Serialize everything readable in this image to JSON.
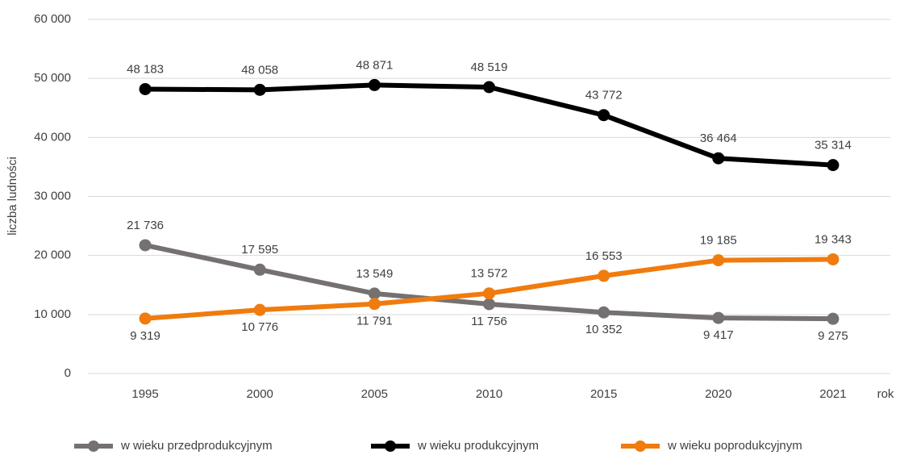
{
  "chart_data": {
    "type": "line",
    "y_label": "liczba ludności",
    "x_label": "rok",
    "categories": [
      "1995",
      "2000",
      "2005",
      "2010",
      "2015",
      "2020",
      "2021"
    ],
    "series": [
      {
        "name": "w wieku przedprodukcyjnym",
        "color": "#767171",
        "values": [
          21736,
          17595,
          13549,
          11756,
          10352,
          9417,
          9275
        ],
        "value_labels": [
          "21 736",
          "17 595",
          "13 549",
          "11 756",
          "10 352",
          "9 417",
          "9 275"
        ]
      },
      {
        "name": "w wieku produkcyjnym",
        "color": "#000000",
        "values": [
          48183,
          48058,
          48871,
          48519,
          43772,
          36464,
          35314
        ],
        "value_labels": [
          "48 183",
          "48 058",
          "48 871",
          "48 519",
          "43 772",
          "36 464",
          "35 314"
        ]
      },
      {
        "name": "w wieku poprodukcyjnym",
        "color": "#f07b0e",
        "values": [
          9319,
          10776,
          11791,
          13572,
          16553,
          19185,
          19343
        ],
        "value_labels": [
          "9 319",
          "10 776",
          "11 791",
          "13 572",
          "16 553",
          "19 185",
          "19 343"
        ]
      }
    ],
    "ylim": [
      0,
      60000
    ],
    "yticks": [
      0,
      {
        "value": 10000,
        "label": "10 000"
      },
      {
        "value": 20000,
        "label": "20 000"
      },
      {
        "value": 30000,
        "label": "30 000"
      },
      {
        "value": 40000,
        "label": "40 000"
      },
      {
        "value": 50000,
        "label": "50 000"
      },
      {
        "value": 60000,
        "label": "60 000"
      }
    ],
    "grid": true,
    "legend": "bottom"
  }
}
